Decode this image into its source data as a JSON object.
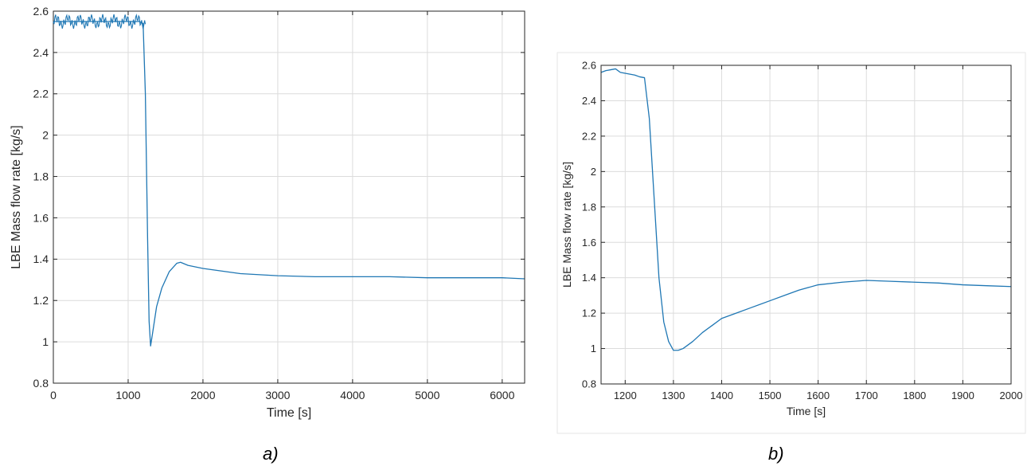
{
  "chart_data": [
    {
      "type": "line",
      "caption": "a)",
      "xlabel": "Time [s]",
      "ylabel": "LBE Mass flow rate [kg/s]",
      "xlim": [
        0,
        6300
      ],
      "ylim": [
        0.8,
        2.6
      ],
      "xticks": [
        0,
        1000,
        2000,
        3000,
        4000,
        5000,
        6000
      ],
      "yticks": [
        0.8,
        1,
        1.2,
        1.4,
        1.6,
        1.8,
        2,
        2.2,
        2.4,
        2.6
      ],
      "xtick_labels": [
        "0",
        "1000",
        "2000",
        "3000",
        "4000",
        "5000",
        "6000"
      ],
      "ytick_labels": [
        "0.8",
        "1",
        "1.2",
        "1.4",
        "1.6",
        "1.8",
        "2",
        "2.2",
        "2.4",
        "2.6"
      ],
      "grid": true,
      "series": [
        {
          "color": "#1f77b4",
          "x": [
            0,
            200,
            400,
            600,
            800,
            1000,
            1150,
            1200,
            1230,
            1260,
            1280,
            1300,
            1330,
            1380,
            1450,
            1550,
            1650,
            1700,
            1800,
            2000,
            2500,
            3000,
            3500,
            4000,
            4500,
            5000,
            5500,
            6000,
            6300
          ],
          "y": [
            2.55,
            2.55,
            2.55,
            2.55,
            2.55,
            2.55,
            2.55,
            2.54,
            2.2,
            1.5,
            1.1,
            0.98,
            1.05,
            1.17,
            1.26,
            1.34,
            1.38,
            1.385,
            1.37,
            1.355,
            1.33,
            1.32,
            1.315,
            1.315,
            1.315,
            1.31,
            1.31,
            1.31,
            1.305
          ]
        }
      ]
    },
    {
      "type": "line",
      "caption": "b)",
      "xlabel": "Time [s]",
      "ylabel": "LBE Mass flow rate [kg/s]",
      "xlim": [
        1150,
        2000
      ],
      "ylim": [
        0.8,
        2.6
      ],
      "xticks": [
        1200,
        1300,
        1400,
        1500,
        1600,
        1700,
        1800,
        1900,
        2000
      ],
      "yticks": [
        0.8,
        1,
        1.2,
        1.4,
        1.6,
        1.8,
        2,
        2.2,
        2.4,
        2.6
      ],
      "xtick_labels": [
        "1200",
        "1300",
        "1400",
        "1500",
        "1600",
        "1700",
        "1800",
        "1900",
        "2000"
      ],
      "ytick_labels": [
        "0.8",
        "1",
        "1.2",
        "1.4",
        "1.6",
        "1.8",
        "2",
        "2.2",
        "2.4",
        "2.6"
      ],
      "grid": true,
      "series": [
        {
          "color": "#1f77b4",
          "x": [
            1150,
            1160,
            1170,
            1180,
            1190,
            1200,
            1210,
            1220,
            1230,
            1240,
            1250,
            1260,
            1270,
            1280,
            1290,
            1300,
            1310,
            1320,
            1340,
            1360,
            1380,
            1400,
            1430,
            1460,
            1500,
            1530,
            1560,
            1600,
            1650,
            1700,
            1750,
            1800,
            1850,
            1900,
            1950,
            2000
          ],
          "y": [
            2.56,
            2.57,
            2.575,
            2.58,
            2.56,
            2.555,
            2.55,
            2.545,
            2.535,
            2.53,
            2.3,
            1.85,
            1.4,
            1.15,
            1.04,
            0.99,
            0.99,
            1.0,
            1.04,
            1.09,
            1.13,
            1.17,
            1.2,
            1.23,
            1.27,
            1.3,
            1.33,
            1.36,
            1.375,
            1.385,
            1.38,
            1.375,
            1.37,
            1.36,
            1.355,
            1.35
          ]
        }
      ]
    }
  ]
}
